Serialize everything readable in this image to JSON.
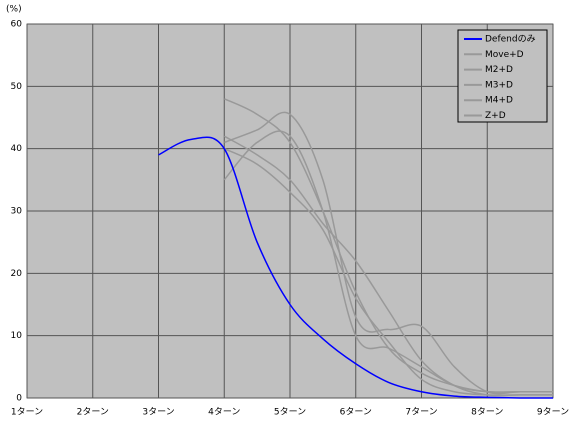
{
  "chart_data": {
    "type": "line",
    "y_label": "(%)",
    "xlim": [
      1,
      9
    ],
    "xticks": [
      {
        "value": 1,
        "label": "1ターン"
      },
      {
        "value": 2,
        "label": "2ターン"
      },
      {
        "value": 3,
        "label": "3ターン"
      },
      {
        "value": 4,
        "label": "4ターン"
      },
      {
        "value": 5,
        "label": "5ターン"
      },
      {
        "value": 6,
        "label": "6ターン"
      },
      {
        "value": 7,
        "label": "7ターン"
      },
      {
        "value": 8,
        "label": "8ターン"
      },
      {
        "value": 9,
        "label": "9ターン"
      }
    ],
    "ylim": [
      0,
      60
    ],
    "yticks": [
      0,
      10,
      20,
      30,
      40,
      50,
      60
    ],
    "grid": true,
    "legend": "top-right",
    "series": [
      {
        "name": "Defendのみ",
        "color": "#0000ff",
        "x": [
          3,
          3.5,
          4,
          4.5,
          5,
          5.5,
          6,
          6.5,
          7,
          7.5,
          8,
          8.5,
          9
        ],
        "values": [
          39,
          41.5,
          40,
          25,
          15,
          9.5,
          5.5,
          2.5,
          1,
          0.3,
          0.1,
          0,
          0
        ]
      },
      {
        "name": "Move+D",
        "color": "#999999",
        "x": [
          4,
          4.5,
          5,
          5.5,
          6,
          6.5,
          7,
          7.5,
          8,
          8.5,
          9
        ],
        "values": [
          48,
          45.5,
          41,
          30,
          17,
          8,
          4,
          2,
          1,
          1,
          1
        ]
      },
      {
        "name": "M2+D",
        "color": "#999999",
        "x": [
          4,
          4.5,
          5,
          5.5,
          6,
          6.5,
          7,
          7.5,
          8,
          8.5,
          9
        ],
        "values": [
          42,
          39,
          35,
          28,
          22,
          14,
          6,
          2,
          0.5,
          0.5,
          0.5
        ]
      },
      {
        "name": "M3+D",
        "color": "#999999",
        "x": [
          4,
          4.5,
          5,
          5.5,
          6,
          6.5,
          7,
          7.5,
          8,
          8.5,
          9
        ],
        "values": [
          41,
          43,
          45.5,
          35,
          13,
          11,
          11.5,
          5,
          1,
          1,
          1
        ]
      },
      {
        "name": "M4+D",
        "color": "#999999",
        "x": [
          4,
          4.5,
          5,
          5.5,
          6,
          6.5,
          7,
          7.5,
          8,
          8.5,
          9
        ],
        "values": [
          35,
          41,
          42,
          30,
          10,
          8,
          5,
          2,
          1,
          1,
          1
        ]
      },
      {
        "name": "Z+D",
        "color": "#999999",
        "x": [
          4,
          4.5,
          5,
          5.5,
          6,
          6.5,
          7,
          7.5,
          8,
          8.5,
          9
        ],
        "values": [
          40,
          37.5,
          33,
          27,
          16,
          9,
          3,
          1,
          0.5,
          0.5,
          0.5
        ]
      }
    ]
  }
}
